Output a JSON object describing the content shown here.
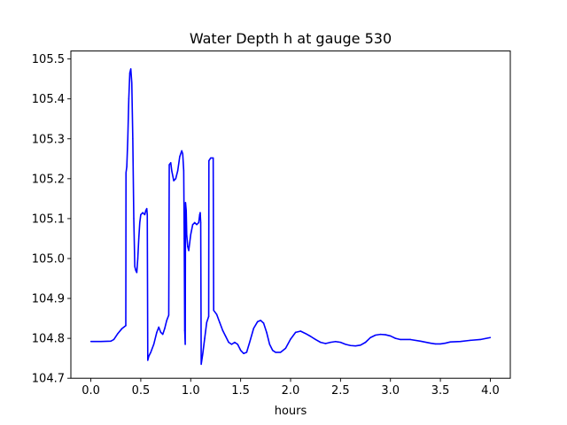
{
  "chart_data": {
    "type": "line",
    "title": "Water Depth h at gauge 530",
    "xlabel": "hours",
    "ylabel": "",
    "xlim": [
      -0.2,
      4.2
    ],
    "ylim": [
      104.7,
      105.52
    ],
    "x_ticks": [
      0.0,
      0.5,
      1.0,
      1.5,
      2.0,
      2.5,
      3.0,
      3.5,
      4.0
    ],
    "x_tick_labels": [
      "0.0",
      "0.5",
      "1.0",
      "1.5",
      "2.0",
      "2.5",
      "3.0",
      "3.5",
      "4.0"
    ],
    "y_ticks": [
      104.7,
      104.8,
      104.9,
      105.0,
      105.1,
      105.2,
      105.3,
      105.4,
      105.5
    ],
    "y_tick_labels": [
      "104.7",
      "104.8",
      "104.9",
      "105.0",
      "105.1",
      "105.2",
      "105.3",
      "105.4",
      "105.5"
    ],
    "grid": false,
    "series": [
      {
        "color": "#0000ff",
        "points": [
          [
            0.0,
            104.792
          ],
          [
            0.1,
            104.792
          ],
          [
            0.2,
            104.793
          ],
          [
            0.23,
            104.797
          ],
          [
            0.27,
            104.812
          ],
          [
            0.31,
            104.824
          ],
          [
            0.35,
            104.832
          ],
          [
            0.352,
            105.215
          ],
          [
            0.36,
            105.23
          ],
          [
            0.37,
            105.3
          ],
          [
            0.38,
            105.4
          ],
          [
            0.39,
            105.465
          ],
          [
            0.4,
            105.475
          ],
          [
            0.41,
            105.44
          ],
          [
            0.42,
            105.3
          ],
          [
            0.43,
            105.1
          ],
          [
            0.44,
            104.98
          ],
          [
            0.45,
            104.97
          ],
          [
            0.46,
            104.965
          ],
          [
            0.47,
            105.0
          ],
          [
            0.48,
            105.05
          ],
          [
            0.49,
            105.09
          ],
          [
            0.5,
            105.11
          ],
          [
            0.52,
            105.115
          ],
          [
            0.54,
            105.11
          ],
          [
            0.55,
            105.12
          ],
          [
            0.56,
            105.125
          ],
          [
            0.565,
            105.11
          ],
          [
            0.57,
            104.745
          ],
          [
            0.58,
            104.755
          ],
          [
            0.6,
            104.765
          ],
          [
            0.63,
            104.785
          ],
          [
            0.66,
            104.815
          ],
          [
            0.68,
            104.828
          ],
          [
            0.7,
            104.815
          ],
          [
            0.72,
            104.81
          ],
          [
            0.74,
            104.825
          ],
          [
            0.76,
            104.845
          ],
          [
            0.78,
            104.858
          ],
          [
            0.785,
            105.235
          ],
          [
            0.8,
            105.24
          ],
          [
            0.81,
            105.22
          ],
          [
            0.83,
            105.195
          ],
          [
            0.85,
            105.2
          ],
          [
            0.87,
            105.22
          ],
          [
            0.89,
            105.255
          ],
          [
            0.91,
            105.27
          ],
          [
            0.92,
            105.262
          ],
          [
            0.93,
            105.22
          ],
          [
            0.935,
            105.05
          ],
          [
            0.94,
            104.82
          ],
          [
            0.945,
            104.785
          ],
          [
            0.948,
            105.14
          ],
          [
            0.955,
            105.12
          ],
          [
            0.96,
            105.06
          ],
          [
            0.97,
            105.03
          ],
          [
            0.98,
            105.02
          ],
          [
            0.99,
            105.04
          ],
          [
            1.0,
            105.06
          ],
          [
            1.02,
            105.085
          ],
          [
            1.04,
            105.09
          ],
          [
            1.06,
            105.085
          ],
          [
            1.08,
            105.09
          ],
          [
            1.09,
            105.11
          ],
          [
            1.095,
            105.115
          ],
          [
            1.1,
            105.09
          ],
          [
            1.105,
            104.735
          ],
          [
            1.12,
            104.76
          ],
          [
            1.14,
            104.8
          ],
          [
            1.16,
            104.84
          ],
          [
            1.18,
            104.855
          ],
          [
            1.182,
            105.245
          ],
          [
            1.2,
            105.252
          ],
          [
            1.225,
            105.252
          ],
          [
            1.23,
            104.87
          ],
          [
            1.26,
            104.86
          ],
          [
            1.29,
            104.84
          ],
          [
            1.32,
            104.82
          ],
          [
            1.35,
            104.805
          ],
          [
            1.38,
            104.79
          ],
          [
            1.41,
            104.785
          ],
          [
            1.44,
            104.79
          ],
          [
            1.47,
            104.785
          ],
          [
            1.5,
            104.77
          ],
          [
            1.53,
            104.762
          ],
          [
            1.56,
            104.765
          ],
          [
            1.59,
            104.79
          ],
          [
            1.63,
            104.825
          ],
          [
            1.67,
            104.842
          ],
          [
            1.7,
            104.845
          ],
          [
            1.73,
            104.838
          ],
          [
            1.76,
            104.815
          ],
          [
            1.79,
            104.785
          ],
          [
            1.82,
            104.77
          ],
          [
            1.85,
            104.765
          ],
          [
            1.9,
            104.765
          ],
          [
            1.95,
            104.775
          ],
          [
            2.0,
            104.798
          ],
          [
            2.05,
            104.815
          ],
          [
            2.1,
            104.818
          ],
          [
            2.15,
            104.812
          ],
          [
            2.2,
            104.805
          ],
          [
            2.25,
            104.797
          ],
          [
            2.3,
            104.79
          ],
          [
            2.35,
            104.787
          ],
          [
            2.4,
            104.79
          ],
          [
            2.45,
            104.792
          ],
          [
            2.5,
            104.79
          ],
          [
            2.55,
            104.785
          ],
          [
            2.6,
            104.782
          ],
          [
            2.65,
            104.781
          ],
          [
            2.7,
            104.783
          ],
          [
            2.75,
            104.79
          ],
          [
            2.8,
            104.802
          ],
          [
            2.85,
            104.808
          ],
          [
            2.9,
            104.81
          ],
          [
            2.95,
            104.809
          ],
          [
            3.0,
            104.806
          ],
          [
            3.05,
            104.8
          ],
          [
            3.1,
            104.797
          ],
          [
            3.2,
            104.797
          ],
          [
            3.3,
            104.793
          ],
          [
            3.4,
            104.788
          ],
          [
            3.45,
            104.786
          ],
          [
            3.5,
            104.786
          ],
          [
            3.55,
            104.788
          ],
          [
            3.6,
            104.791
          ],
          [
            3.7,
            104.792
          ],
          [
            3.8,
            104.795
          ],
          [
            3.9,
            104.797
          ],
          [
            4.0,
            104.802
          ]
        ]
      }
    ]
  }
}
